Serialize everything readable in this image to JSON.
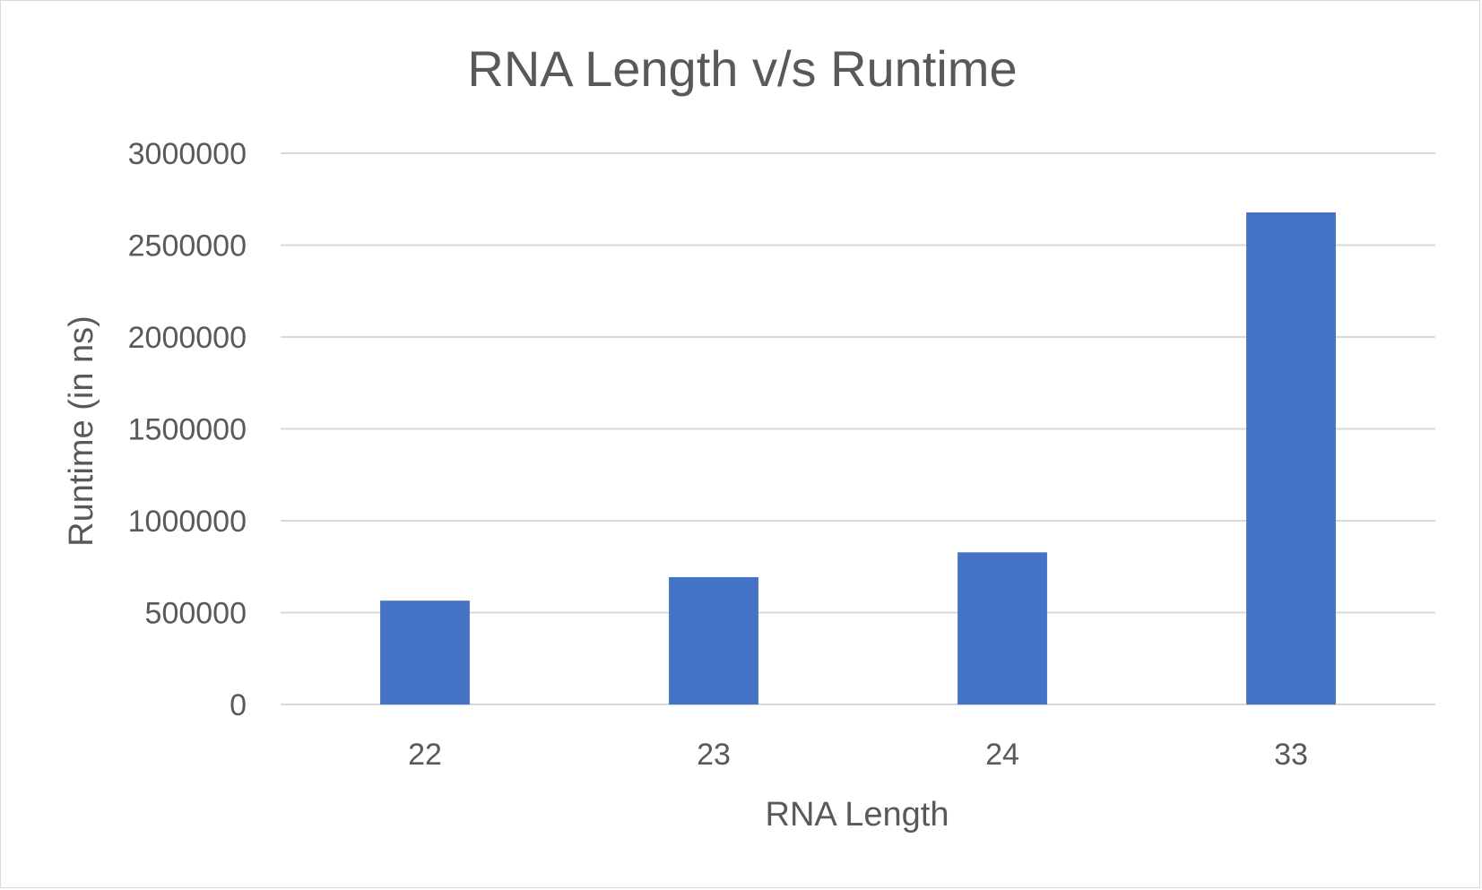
{
  "chart_data": {
    "type": "bar",
    "title": "RNA Length v/s Runtime",
    "xlabel": "RNA Length",
    "ylabel": "Runtime (in ns)",
    "categories": [
      "22",
      "23",
      "24",
      "33"
    ],
    "series": [
      {
        "values": [
          565000,
          693000,
          828000,
          2678000
        ],
        "color": "#4472c4"
      }
    ],
    "ylim": [
      0,
      3000000
    ],
    "yticks": [
      "0",
      "500000",
      "1000000",
      "1500000",
      "2000000",
      "2500000",
      "3000000"
    ],
    "grid": true,
    "legend": "none"
  }
}
